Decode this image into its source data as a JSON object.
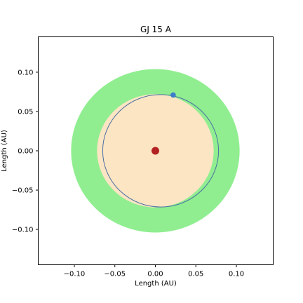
{
  "chart_data": {
    "type": "scatter",
    "title": "GJ 15 A",
    "xlabel": "Length (AU)",
    "ylabel": "Length (AU)",
    "xlim": [
      -0.145,
      0.145
    ],
    "ylim": [
      -0.145,
      0.145
    ],
    "xticks": [
      -0.1,
      -0.05,
      0.0,
      0.05,
      0.1
    ],
    "yticks": [
      -0.1,
      -0.05,
      0.0,
      0.05,
      0.1
    ],
    "xtick_labels": [
      "−0.10",
      "−0.05",
      "0.00",
      "0.05",
      "0.10"
    ],
    "ytick_labels": [
      "−0.10",
      "−0.05",
      "0.00",
      "0.05",
      "0.10"
    ],
    "grid": false,
    "habitable_zone": {
      "outer_radius": 0.104,
      "inner_radius": 0.072,
      "outer_color": "#90ee90",
      "inner_color": "#fce5c3"
    },
    "orbit": {
      "center": [
        0.0065,
        0.0
      ],
      "semi_major_axis": 0.0715,
      "semi_minor_axis": 0.0715,
      "color": "#4a6fa5"
    },
    "star": {
      "x": 0.0,
      "y": 0.0,
      "color": "#b22222"
    },
    "planet": {
      "x": 0.022,
      "y": 0.071,
      "color": "#3d7cc9"
    }
  }
}
